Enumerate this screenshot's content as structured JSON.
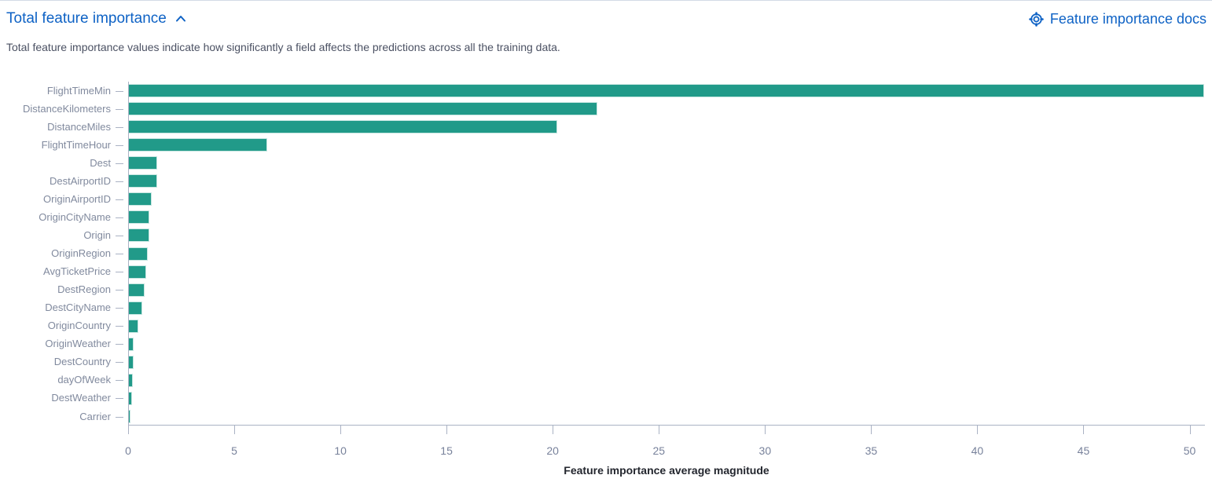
{
  "panel": {
    "title": "Total feature importance",
    "description": "Total feature importance values indicate how significantly a field affects the predictions across all the training data.",
    "docs_link_label": "Feature importance docs"
  },
  "icons": {
    "collapse": "chevron-up-icon",
    "docs": "life-buoy-documentation-icon"
  },
  "colors": {
    "link_blue": "#0e62c5",
    "bar_teal": "#219a89",
    "axis_line": "#aab2c4",
    "y_label": "#818a9e",
    "tick_label": "#78829b",
    "axis_title": "#23262e",
    "description_text": "#4b5163"
  },
  "chart_data": {
    "type": "bar",
    "orientation": "horizontal",
    "title": "",
    "xlabel": "Feature importance average magnitude",
    "ylabel": "",
    "legend": "none",
    "grid": false,
    "xlim": [
      0,
      50.72
    ],
    "x_ticks": [
      0,
      5,
      10,
      15,
      20,
      25,
      30,
      35,
      40,
      45,
      50
    ],
    "categories": [
      "FlightTimeMin",
      "DistanceKilometers",
      "DistanceMiles",
      "FlightTimeHour",
      "Dest",
      "DestAirportID",
      "OriginAirportID",
      "OriginCityName",
      "Origin",
      "OriginRegion",
      "AvgTicketPrice",
      "DestRegion",
      "DestCityName",
      "OriginCountry",
      "OriginWeather",
      "DestCountry",
      "dayOfWeek",
      "DestWeather",
      "Carrier"
    ],
    "values": [
      50.7,
      22.1,
      20.2,
      6.5,
      1.35,
      1.32,
      1.09,
      0.97,
      0.95,
      0.89,
      0.82,
      0.73,
      0.62,
      0.45,
      0.22,
      0.21,
      0.19,
      0.15,
      0.06
    ]
  }
}
